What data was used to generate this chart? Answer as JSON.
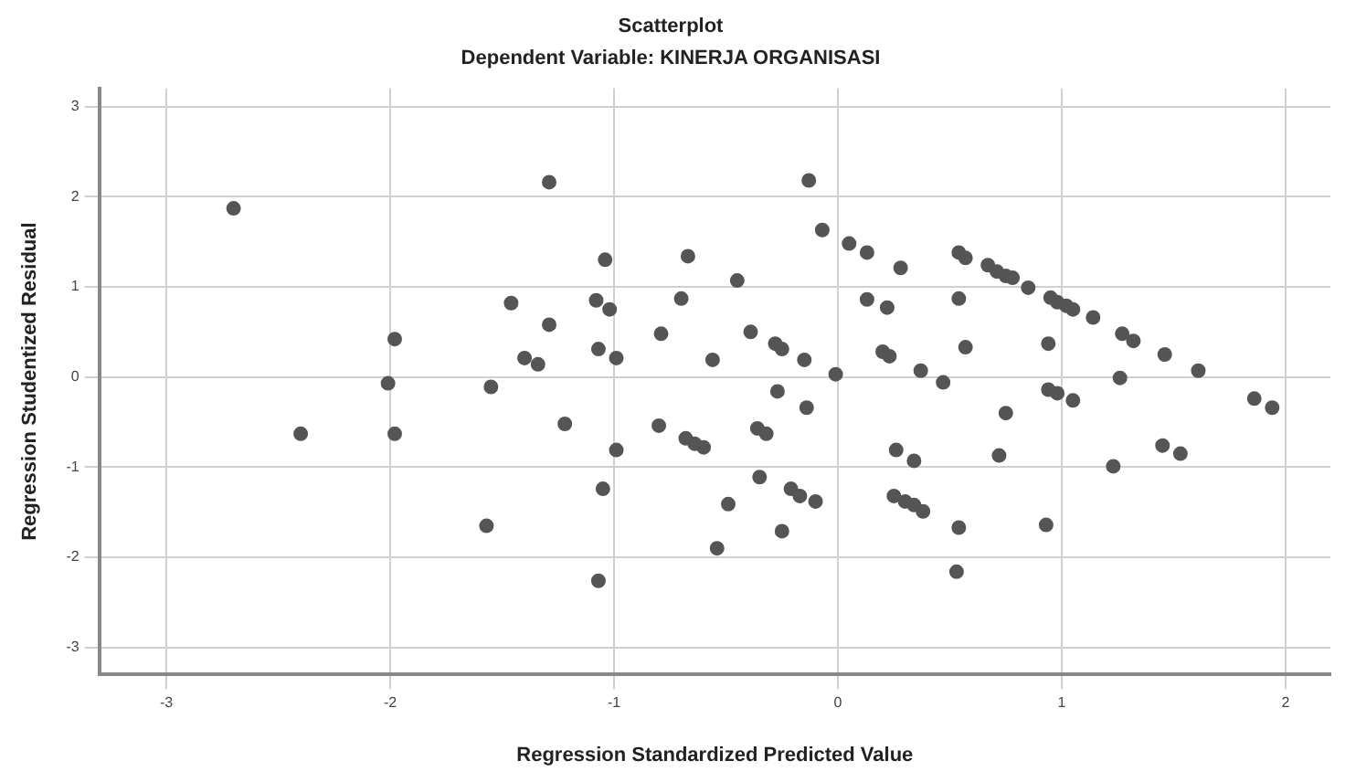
{
  "chart_data": {
    "type": "scatter",
    "title": "Scatterplot",
    "subtitle": "Dependent Variable: KINERJA ORGANISASI",
    "xlabel": "Regression Standardized Predicted Value",
    "ylabel": "Regression Studentized Residual",
    "xlim": [
      -3.3,
      2.2
    ],
    "ylim": [
      -3.3,
      3.2
    ],
    "xticks": [
      -3,
      -2,
      -1,
      0,
      1,
      2
    ],
    "yticks": [
      -3,
      -2,
      -1,
      0,
      1,
      2,
      3
    ],
    "grid": true,
    "marker": "circle",
    "series": [
      {
        "color": "#555555",
        "x": [
          -2.7,
          -2.4,
          -1.98,
          -2.01,
          -1.98,
          -1.46,
          -1.4,
          -1.55,
          -1.57,
          -1.29,
          -1.04,
          -0.67,
          -0.13,
          -0.07,
          0.05,
          0.13,
          0.28,
          -0.45,
          -1.08,
          -1.02,
          -0.7,
          0.13,
          0.22,
          -1.29,
          -0.79,
          -0.39,
          -1.34,
          -1.07,
          -0.99,
          -0.56,
          -0.28,
          -0.25,
          -0.15,
          0.2,
          0.23,
          0.37,
          -0.01,
          -0.27,
          -0.14,
          -1.22,
          -0.8,
          -0.68,
          -0.64,
          -0.6,
          -0.99,
          -0.36,
          -0.32,
          0.26,
          0.34,
          -1.05,
          -0.35,
          -0.21,
          -0.17,
          -0.1,
          -0.49,
          -0.25,
          -0.54,
          -1.07,
          0.25,
          0.3,
          0.34,
          0.38,
          0.54,
          0.57,
          0.67,
          0.71,
          0.75,
          0.78,
          0.85,
          0.95,
          0.98,
          1.02,
          1.05,
          1.14,
          1.27,
          1.32,
          1.46,
          1.61,
          1.86,
          1.94,
          0.54,
          0.57,
          0.94,
          0.47,
          1.26,
          0.94,
          0.98,
          1.05,
          0.75,
          0.72,
          1.45,
          1.53,
          1.23,
          0.54,
          0.93,
          0.53
        ],
        "values": [
          1.87,
          -0.63,
          0.42,
          -0.07,
          -0.63,
          0.82,
          0.21,
          -0.11,
          -1.65,
          2.16,
          1.3,
          1.34,
          2.18,
          1.63,
          1.48,
          1.38,
          1.21,
          1.07,
          0.85,
          0.75,
          0.87,
          0.86,
          0.77,
          0.58,
          0.48,
          0.5,
          0.14,
          0.31,
          0.21,
          0.19,
          0.37,
          0.31,
          0.19,
          0.28,
          0.23,
          0.07,
          0.03,
          -0.16,
          -0.34,
          -0.52,
          -0.54,
          -0.68,
          -0.74,
          -0.78,
          -0.81,
          -0.57,
          -0.63,
          -0.81,
          -0.93,
          -1.24,
          -1.11,
          -1.24,
          -1.32,
          -1.38,
          -1.41,
          -1.71,
          -1.9,
          -2.26,
          -1.32,
          -1.38,
          -1.42,
          -1.49,
          1.38,
          1.32,
          1.24,
          1.17,
          1.12,
          1.1,
          0.99,
          0.88,
          0.83,
          0.79,
          0.75,
          0.66,
          0.48,
          0.4,
          0.25,
          0.07,
          -0.24,
          -0.34,
          0.87,
          0.33,
          0.37,
          -0.06,
          -0.01,
          -0.14,
          -0.18,
          -0.26,
          -0.4,
          -0.87,
          -0.76,
          -0.85,
          -0.99,
          -1.67,
          -1.64,
          -2.16
        ]
      }
    ]
  }
}
